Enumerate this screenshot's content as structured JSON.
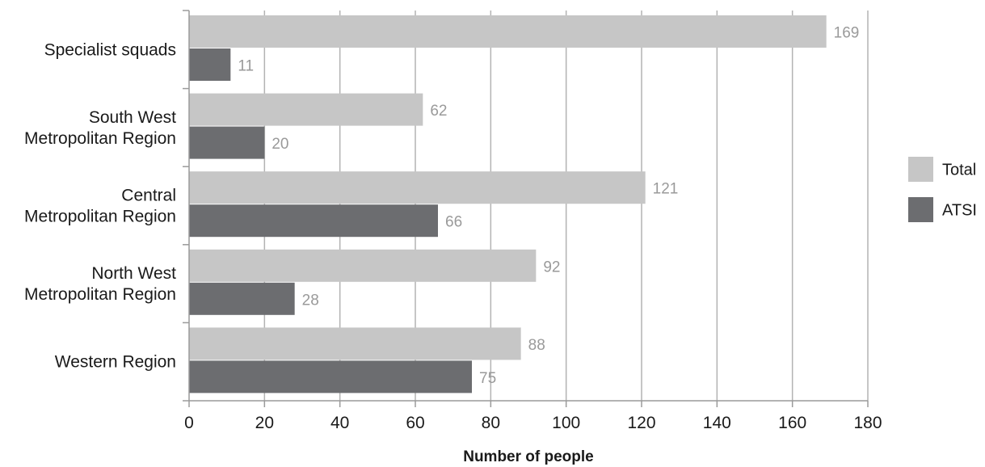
{
  "chart_data": {
    "type": "bar",
    "orientation": "horizontal",
    "categories": [
      [
        "Specialist squads"
      ],
      [
        "South West",
        "Metropolitan Region"
      ],
      [
        "Central",
        "Metropolitan Region"
      ],
      [
        "North West",
        "Metropolitan Region"
      ],
      [
        "Western Region"
      ]
    ],
    "series": [
      {
        "name": "Total",
        "color": "#c6c6c6",
        "values": [
          169,
          62,
          121,
          92,
          88
        ]
      },
      {
        "name": "ATSI",
        "color": "#6c6d70",
        "values": [
          11,
          20,
          66,
          28,
          75
        ]
      }
    ],
    "xlabel": "Number of people",
    "ylabel": "",
    "xlim": [
      0,
      180
    ],
    "xticks": [
      0,
      20,
      40,
      60,
      80,
      100,
      120,
      140,
      160,
      180
    ],
    "grid": "vertical",
    "legend": "right"
  }
}
